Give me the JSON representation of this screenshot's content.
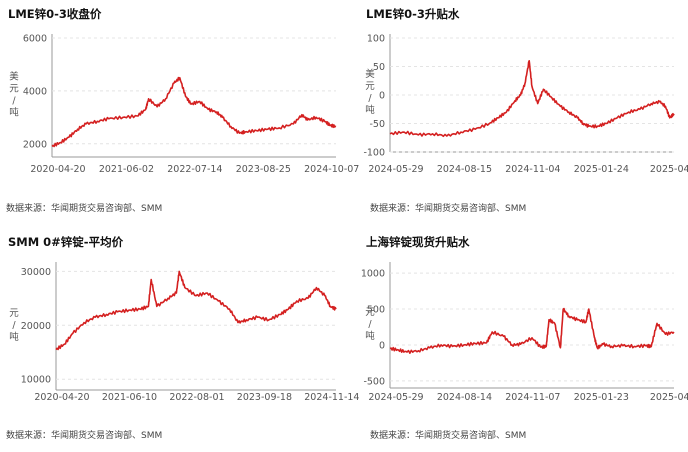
{
  "charts": [
    {
      "title": "LME锌0-3收盘价",
      "source": "数据来源：华闻期货交易咨询部、SMM",
      "ylabel": "美元/吨"
    },
    {
      "title": "LME锌0-3升贴水",
      "source": "数据来源：华闻期货交易咨询部、SMM",
      "ylabel": "美元/吨"
    },
    {
      "title": "SMM 0#锌锭-平均价",
      "source": "数据来源：华闻期货交易咨询部、SMM",
      "ylabel": "元/吨"
    },
    {
      "title": "上海锌锭现货升贴水",
      "source": "数据来源：华闻期货交易咨询部、SMM",
      "ylabel": "元/吨"
    }
  ],
  "chart_data": [
    {
      "type": "line",
      "title": "LME锌0-3收盘价",
      "ylabel": "美元/吨",
      "ylim": [
        1500,
        6000
      ],
      "yticks": [
        2000,
        4000,
        6000
      ],
      "xticks": [
        "2020-04-20",
        "2021-06-02",
        "2022-07-14",
        "2023-08-25",
        "2024-10-07"
      ],
      "color": "#d42020",
      "series": [
        {
          "x": [
            0,
            0.03,
            0.06,
            0.09,
            0.12,
            0.16,
            0.2,
            0.25,
            0.3,
            0.33,
            0.34,
            0.37,
            0.4,
            0.43,
            0.45,
            0.47,
            0.49,
            0.52,
            0.55,
            0.58,
            0.6,
            0.63,
            0.66,
            0.68,
            0.72,
            0.76,
            0.8,
            0.85,
            0.88,
            0.9,
            0.93,
            0.96,
            0.98,
            1.0
          ],
          "values": [
            1900,
            2050,
            2250,
            2550,
            2750,
            2850,
            2950,
            3000,
            3050,
            3300,
            3700,
            3400,
            3700,
            4300,
            4500,
            3800,
            3500,
            3600,
            3300,
            3200,
            3000,
            2650,
            2400,
            2450,
            2500,
            2550,
            2600,
            2750,
            3100,
            2900,
            3000,
            2850,
            2700,
            2650
          ]
        }
      ]
    },
    {
      "type": "line",
      "title": "LME锌0-3升贴水",
      "ylabel": "美元/吨",
      "ylim": [
        -100,
        100
      ],
      "yticks": [
        -100,
        -50,
        0,
        50,
        100
      ],
      "xticks": [
        "2024-05-29",
        "2024-08-15",
        "2024-11-04",
        "2025-01-24",
        "2025-04"
      ],
      "color": "#d42020",
      "series": [
        {
          "x": [
            0,
            0.05,
            0.1,
            0.15,
            0.2,
            0.25,
            0.3,
            0.35,
            0.38,
            0.41,
            0.44,
            0.46,
            0.475,
            0.49,
            0.5,
            0.52,
            0.54,
            0.57,
            0.6,
            0.63,
            0.66,
            0.68,
            0.7,
            0.73,
            0.76,
            0.8,
            0.84,
            0.88,
            0.92,
            0.95,
            0.97,
            0.985,
            1.0
          ],
          "values": [
            -68,
            -65,
            -70,
            -68,
            -72,
            -65,
            -60,
            -50,
            -40,
            -30,
            -10,
            0,
            20,
            60,
            15,
            -15,
            10,
            -5,
            -20,
            -30,
            -40,
            -50,
            -55,
            -55,
            -50,
            -40,
            -30,
            -25,
            -15,
            -12,
            -20,
            -40,
            -33
          ]
        }
      ]
    },
    {
      "type": "line",
      "title": "SMM 0#锌锭-平均价",
      "ylabel": "元/吨",
      "ylim": [
        8000,
        31000
      ],
      "yticks": [
        10000,
        20000,
        30000
      ],
      "xticks": [
        "2020-04-20",
        "2021-06-10",
        "2022-08-01",
        "2023-09-18",
        "2024-11-14"
      ],
      "color": "#d42020",
      "series": [
        {
          "x": [
            0,
            0.03,
            0.06,
            0.1,
            0.14,
            0.18,
            0.22,
            0.26,
            0.3,
            0.33,
            0.34,
            0.36,
            0.4,
            0.43,
            0.44,
            0.46,
            0.5,
            0.54,
            0.58,
            0.62,
            0.65,
            0.68,
            0.72,
            0.76,
            0.8,
            0.83,
            0.86,
            0.9,
            0.93,
            0.96,
            0.98,
            1.0
          ],
          "values": [
            15500,
            16500,
            18500,
            20500,
            21500,
            22000,
            22500,
            22800,
            23000,
            23500,
            28500,
            23500,
            25000,
            26000,
            30000,
            27000,
            25500,
            26000,
            24500,
            23000,
            20500,
            21000,
            21500,
            21000,
            22000,
            23000,
            24500,
            25000,
            27000,
            25500,
            23500,
            23000
          ]
        }
      ]
    },
    {
      "type": "line",
      "title": "上海锌锭现货升贴水",
      "ylabel": "元/吨",
      "ylim": [
        -600,
        1100
      ],
      "yticks": [
        -500,
        0,
        500,
        1000
      ],
      "xticks": [
        "2024-05-29",
        "2024-08-14",
        "2024-11-07",
        "2025-01-23",
        "2025-04"
      ],
      "color": "#d42020",
      "series": [
        {
          "x": [
            0,
            0.03,
            0.06,
            0.1,
            0.14,
            0.18,
            0.22,
            0.26,
            0.3,
            0.34,
            0.36,
            0.4,
            0.43,
            0.46,
            0.5,
            0.53,
            0.55,
            0.56,
            0.58,
            0.6,
            0.61,
            0.63,
            0.66,
            0.69,
            0.7,
            0.72,
            0.73,
            0.75,
            0.78,
            0.82,
            0.86,
            0.9,
            0.92,
            0.94,
            0.97,
            1.0
          ],
          "values": [
            -50,
            -70,
            -100,
            -80,
            -40,
            0,
            -20,
            0,
            20,
            30,
            180,
            120,
            0,
            10,
            100,
            -30,
            -20,
            350,
            300,
            -40,
            500,
            400,
            350,
            320,
            500,
            100,
            -40,
            10,
            -20,
            -10,
            -20,
            -10,
            -20,
            300,
            150,
            180
          ]
        }
      ]
    }
  ]
}
